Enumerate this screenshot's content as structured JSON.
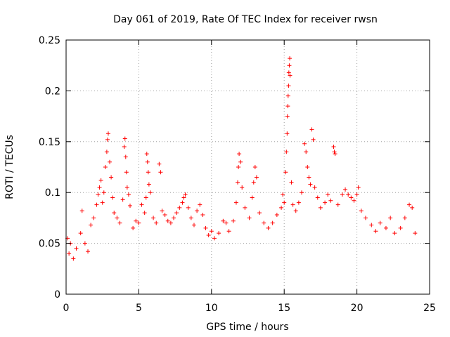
{
  "chart_data": {
    "type": "scatter",
    "title": "Day 061 of 2019, Rate Of TEC Index for receiver rwsn",
    "xlabel": "GPS time / hours",
    "ylabel": "ROTI / TECUs",
    "xlim": [
      0,
      25
    ],
    "ylim": [
      0,
      0.25
    ],
    "x_ticks": [
      0,
      5,
      10,
      15,
      20,
      25
    ],
    "x_tick_labels": [
      "0",
      "5",
      "10",
      "15",
      "20",
      "25"
    ],
    "y_ticks": [
      0,
      0.05,
      0.1,
      0.15,
      0.2,
      0.25
    ],
    "y_tick_labels": [
      "0",
      "0.05",
      "0.1",
      "0.15",
      "0.2",
      "0.25"
    ],
    "grid": true,
    "marker": "plus",
    "series": [
      {
        "name": "ROTI",
        "color": "#ff0000",
        "points": [
          [
            0.1,
            0.055
          ],
          [
            0.2,
            0.04
          ],
          [
            0.3,
            0.05
          ],
          [
            0.5,
            0.035
          ],
          [
            0.7,
            0.045
          ],
          [
            1.0,
            0.06
          ],
          [
            1.1,
            0.082
          ],
          [
            1.3,
            0.05
          ],
          [
            1.5,
            0.042
          ],
          [
            1.7,
            0.068
          ],
          [
            1.9,
            0.075
          ],
          [
            2.1,
            0.088
          ],
          [
            2.2,
            0.098
          ],
          [
            2.3,
            0.105
          ],
          [
            2.4,
            0.112
          ],
          [
            2.5,
            0.09
          ],
          [
            2.6,
            0.1
          ],
          [
            2.7,
            0.125
          ],
          [
            2.8,
            0.14
          ],
          [
            2.85,
            0.152
          ],
          [
            2.9,
            0.158
          ],
          [
            3.0,
            0.13
          ],
          [
            3.1,
            0.115
          ],
          [
            3.2,
            0.095
          ],
          [
            3.3,
            0.08
          ],
          [
            3.5,
            0.075
          ],
          [
            3.7,
            0.07
          ],
          [
            3.9,
            0.093
          ],
          [
            4.0,
            0.145
          ],
          [
            4.05,
            0.153
          ],
          [
            4.1,
            0.135
          ],
          [
            4.15,
            0.12
          ],
          [
            4.2,
            0.105
          ],
          [
            4.3,
            0.098
          ],
          [
            4.4,
            0.087
          ],
          [
            4.6,
            0.065
          ],
          [
            4.8,
            0.072
          ],
          [
            5.0,
            0.07
          ],
          [
            5.2,
            0.088
          ],
          [
            5.4,
            0.08
          ],
          [
            5.5,
            0.095
          ],
          [
            5.55,
            0.138
          ],
          [
            5.6,
            0.13
          ],
          [
            5.65,
            0.12
          ],
          [
            5.7,
            0.108
          ],
          [
            5.8,
            0.1
          ],
          [
            6.0,
            0.075
          ],
          [
            6.2,
            0.07
          ],
          [
            6.4,
            0.128
          ],
          [
            6.5,
            0.12
          ],
          [
            6.6,
            0.082
          ],
          [
            6.8,
            0.078
          ],
          [
            7.0,
            0.072
          ],
          [
            7.2,
            0.07
          ],
          [
            7.4,
            0.075
          ],
          [
            7.6,
            0.08
          ],
          [
            7.8,
            0.085
          ],
          [
            8.0,
            0.09
          ],
          [
            8.1,
            0.095
          ],
          [
            8.2,
            0.098
          ],
          [
            8.4,
            0.085
          ],
          [
            8.6,
            0.075
          ],
          [
            8.8,
            0.068
          ],
          [
            9.0,
            0.082
          ],
          [
            9.2,
            0.088
          ],
          [
            9.4,
            0.078
          ],
          [
            9.6,
            0.065
          ],
          [
            9.8,
            0.058
          ],
          [
            10.0,
            0.062
          ],
          [
            10.2,
            0.055
          ],
          [
            10.5,
            0.06
          ],
          [
            10.8,
            0.072
          ],
          [
            11.0,
            0.07
          ],
          [
            11.2,
            0.062
          ],
          [
            11.5,
            0.072
          ],
          [
            11.7,
            0.09
          ],
          [
            11.8,
            0.11
          ],
          [
            11.85,
            0.125
          ],
          [
            11.9,
            0.138
          ],
          [
            12.0,
            0.13
          ],
          [
            12.1,
            0.105
          ],
          [
            12.3,
            0.085
          ],
          [
            12.6,
            0.075
          ],
          [
            12.8,
            0.095
          ],
          [
            12.9,
            0.11
          ],
          [
            13.0,
            0.125
          ],
          [
            13.1,
            0.115
          ],
          [
            13.3,
            0.08
          ],
          [
            13.6,
            0.07
          ],
          [
            13.9,
            0.065
          ],
          [
            14.2,
            0.07
          ],
          [
            14.5,
            0.078
          ],
          [
            14.8,
            0.085
          ],
          [
            14.9,
            0.098
          ],
          [
            15.0,
            0.09
          ],
          [
            15.1,
            0.12
          ],
          [
            15.15,
            0.14
          ],
          [
            15.2,
            0.158
          ],
          [
            15.22,
            0.175
          ],
          [
            15.25,
            0.185
          ],
          [
            15.27,
            0.195
          ],
          [
            15.3,
            0.205
          ],
          [
            15.32,
            0.218
          ],
          [
            15.35,
            0.225
          ],
          [
            15.38,
            0.232
          ],
          [
            15.4,
            0.215
          ],
          [
            15.5,
            0.11
          ],
          [
            15.6,
            0.088
          ],
          [
            15.8,
            0.082
          ],
          [
            16.0,
            0.09
          ],
          [
            16.2,
            0.1
          ],
          [
            16.4,
            0.148
          ],
          [
            16.5,
            0.14
          ],
          [
            16.6,
            0.125
          ],
          [
            16.7,
            0.115
          ],
          [
            16.8,
            0.108
          ],
          [
            16.9,
            0.162
          ],
          [
            17.0,
            0.152
          ],
          [
            17.1,
            0.105
          ],
          [
            17.3,
            0.095
          ],
          [
            17.5,
            0.085
          ],
          [
            17.8,
            0.09
          ],
          [
            18.0,
            0.098
          ],
          [
            18.2,
            0.092
          ],
          [
            18.4,
            0.145
          ],
          [
            18.45,
            0.14
          ],
          [
            18.5,
            0.138
          ],
          [
            18.7,
            0.088
          ],
          [
            19.0,
            0.098
          ],
          [
            19.2,
            0.103
          ],
          [
            19.4,
            0.098
          ],
          [
            19.6,
            0.095
          ],
          [
            19.8,
            0.092
          ],
          [
            20.0,
            0.098
          ],
          [
            20.1,
            0.105
          ],
          [
            20.3,
            0.082
          ],
          [
            20.6,
            0.075
          ],
          [
            21.0,
            0.068
          ],
          [
            21.3,
            0.062
          ],
          [
            21.6,
            0.07
          ],
          [
            22.0,
            0.065
          ],
          [
            22.3,
            0.075
          ],
          [
            22.6,
            0.06
          ],
          [
            23.0,
            0.065
          ],
          [
            23.3,
            0.075
          ],
          [
            23.6,
            0.088
          ],
          [
            23.8,
            0.085
          ],
          [
            24.0,
            0.06
          ]
        ]
      }
    ]
  }
}
